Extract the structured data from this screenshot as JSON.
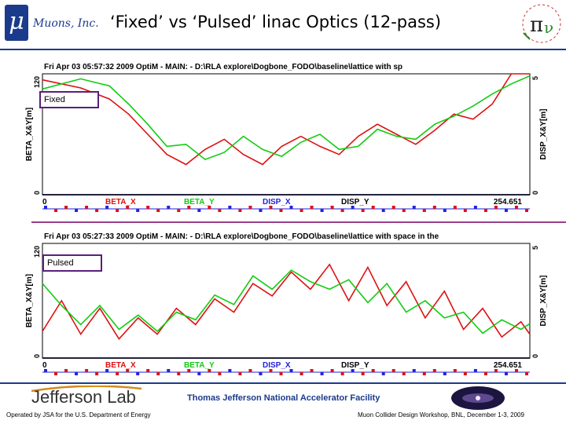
{
  "header": {
    "logo_symbol": "μ",
    "company": "Muons, Inc.",
    "title": "‘Fixed’ vs ‘Pulsed’ linac Optics (12-pass)"
  },
  "colors": {
    "beta_x": "#dd1111",
    "beta_y": "#11cc11",
    "disp_x": "#2222dd",
    "disp_y": "#000000",
    "rule": "#1a3a8c",
    "tag_border": "#5a1f7a"
  },
  "chart_data": [
    {
      "type": "line",
      "panel_header": "Fri Apr 03 05:57:32 2009      OptiM - MAIN: - D:\\RLA explore\\Dogbone_FODO\\baseline\\lattice with sp",
      "tag": "Fixed",
      "ylabel_left": "BETA_X&Y[m]",
      "ylabel_right": "DISP_X&Y[m]",
      "y_left_ticks": [
        "0",
        "120"
      ],
      "y_right_ticks": [
        "0",
        "5"
      ],
      "ylim_left": [
        0,
        120
      ],
      "ylim_right": [
        0,
        5
      ],
      "x_ticks": [
        "0",
        "254.651"
      ],
      "xlim": [
        0,
        254.651
      ],
      "legend": [
        "BETA_X",
        "BETA_Y",
        "DISP_X",
        "DISP_Y"
      ],
      "series": [
        {
          "name": "BETA_X",
          "x": [
            0,
            20,
            35,
            45,
            55,
            65,
            75,
            85,
            95,
            105,
            115,
            125,
            135,
            145,
            155,
            165,
            175,
            185,
            195,
            205,
            215,
            225,
            235,
            245,
            254.651
          ],
          "y": [
            114,
            106,
            95,
            80,
            60,
            40,
            30,
            45,
            55,
            40,
            30,
            48,
            58,
            48,
            40,
            58,
            70,
            60,
            50,
            64,
            80,
            75,
            90,
            120,
            120
          ]
        },
        {
          "name": "BETA_Y",
          "x": [
            0,
            20,
            35,
            45,
            55,
            65,
            75,
            85,
            95,
            105,
            115,
            125,
            135,
            145,
            155,
            165,
            175,
            185,
            195,
            205,
            215,
            225,
            235,
            245,
            254.651
          ],
          "y": [
            105,
            115,
            108,
            90,
            70,
            48,
            50,
            35,
            42,
            58,
            45,
            38,
            52,
            60,
            45,
            48,
            65,
            58,
            55,
            70,
            78,
            88,
            100,
            110,
            118
          ]
        },
        {
          "name": "DISP_X",
          "x": [
            0,
            254.651
          ],
          "y": [
            0,
            0
          ]
        },
        {
          "name": "DISP_Y",
          "x": [
            0,
            254.651
          ],
          "y": [
            0,
            0
          ]
        }
      ]
    },
    {
      "type": "line",
      "panel_header": "Fri Apr 03 05:27:33 2009      OptiM - MAIN: - D:\\RLA explore\\Dogbone_FODO\\baseline\\lattice with space in the",
      "tag": "Pulsed",
      "ylabel_left": "BETA_X&Y[m]",
      "ylabel_right": "DISP_X&Y[m]",
      "y_left_ticks": [
        "0",
        "120"
      ],
      "y_right_ticks": [
        "0",
        "5"
      ],
      "ylim_left": [
        0,
        120
      ],
      "ylim_right": [
        0,
        5
      ],
      "x_ticks": [
        "0",
        "254.651"
      ],
      "xlim": [
        0,
        254.651
      ],
      "legend": [
        "BETA_X",
        "BETA_Y",
        "DISP_X",
        "DISP_Y"
      ],
      "series": [
        {
          "name": "BETA_X",
          "x": [
            0,
            10,
            20,
            30,
            40,
            50,
            60,
            70,
            80,
            90,
            100,
            110,
            120,
            130,
            140,
            150,
            160,
            170,
            180,
            190,
            200,
            210,
            220,
            230,
            240,
            250,
            254.651
          ],
          "y": [
            28,
            60,
            25,
            52,
            20,
            42,
            25,
            52,
            35,
            62,
            48,
            78,
            65,
            90,
            72,
            98,
            60,
            95,
            55,
            80,
            42,
            70,
            30,
            52,
            22,
            38,
            25
          ]
        },
        {
          "name": "BETA_Y",
          "x": [
            0,
            10,
            20,
            30,
            40,
            50,
            60,
            70,
            80,
            90,
            100,
            110,
            120,
            130,
            140,
            150,
            160,
            170,
            180,
            190,
            200,
            210,
            220,
            230,
            240,
            250,
            254.651
          ],
          "y": [
            78,
            55,
            35,
            55,
            30,
            45,
            28,
            48,
            40,
            66,
            56,
            86,
            72,
            92,
            80,
            72,
            82,
            58,
            78,
            48,
            60,
            42,
            48,
            26,
            40,
            30,
            36
          ]
        },
        {
          "name": "DISP_X",
          "x": [
            0,
            254.651
          ],
          "y": [
            0,
            0
          ]
        },
        {
          "name": "DISP_Y",
          "x": [
            0,
            254.651
          ],
          "y": [
            0,
            0
          ]
        }
      ]
    }
  ],
  "footer": {
    "lab_name": "Jefferson Lab",
    "facility": "Thomas Jefferson National Accelerator Facility",
    "operated_by": "Operated by JSA for the U.S. Department of Energy",
    "conference": "Muon Collider Design Workshop,  BNL,  December 1-3, 2009"
  }
}
